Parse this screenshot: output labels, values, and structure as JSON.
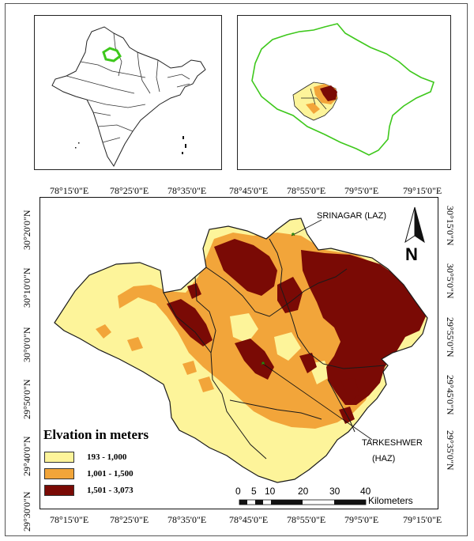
{
  "top_labels": [
    "78°15'0\"E",
    "78°25'0\"E",
    "78°35'0\"E",
    "78°45'0\"E",
    "78°55'0\"E",
    "79°5'0\"E",
    "79°15'0\"E"
  ],
  "bottom_labels": [
    "78°15'0\"E",
    "78°25'0\"E",
    "78°35'0\"E",
    "78°45'0\"E",
    "78°55'0\"E",
    "79°5'0\"E",
    "79°15'0\"E"
  ],
  "left_labels": [
    "30°20'0\"N",
    "30°10'0\"N",
    "30°0'0\"N",
    "29°50'0\"N",
    "29°40'0\"N",
    "29°30'0\"N"
  ],
  "right_labels": [
    "30°15'0\"N",
    "30°5'0\"N",
    "29°55'0\"N",
    "29°45'0\"N",
    "29°35'0\"N"
  ],
  "legend": {
    "title": "Elvation in meters",
    "items": [
      {
        "label": "193 - 1,000",
        "color": "#fdf49a"
      },
      {
        "label": "1,001 - 1,500",
        "color": "#f2a53a"
      },
      {
        "label": "1,501 - 3,073",
        "color": "#7a0a05"
      }
    ]
  },
  "places": {
    "srinagar": "SRINAGAR (LAZ)",
    "tarkeshwer_line1": "TARKESHWER",
    "tarkeshwer_line2": "(HAZ)"
  },
  "scale_bar": {
    "ticks": [
      "0",
      "5",
      "10",
      "20",
      "30",
      "40"
    ],
    "unit": "Kilometers"
  },
  "north_arrow": "N",
  "colors": {
    "low": "#fdf49a",
    "mid": "#f2a53a",
    "high": "#7a0a05",
    "highlight": "#3ec81c",
    "boundary": "#1a1a1a"
  }
}
